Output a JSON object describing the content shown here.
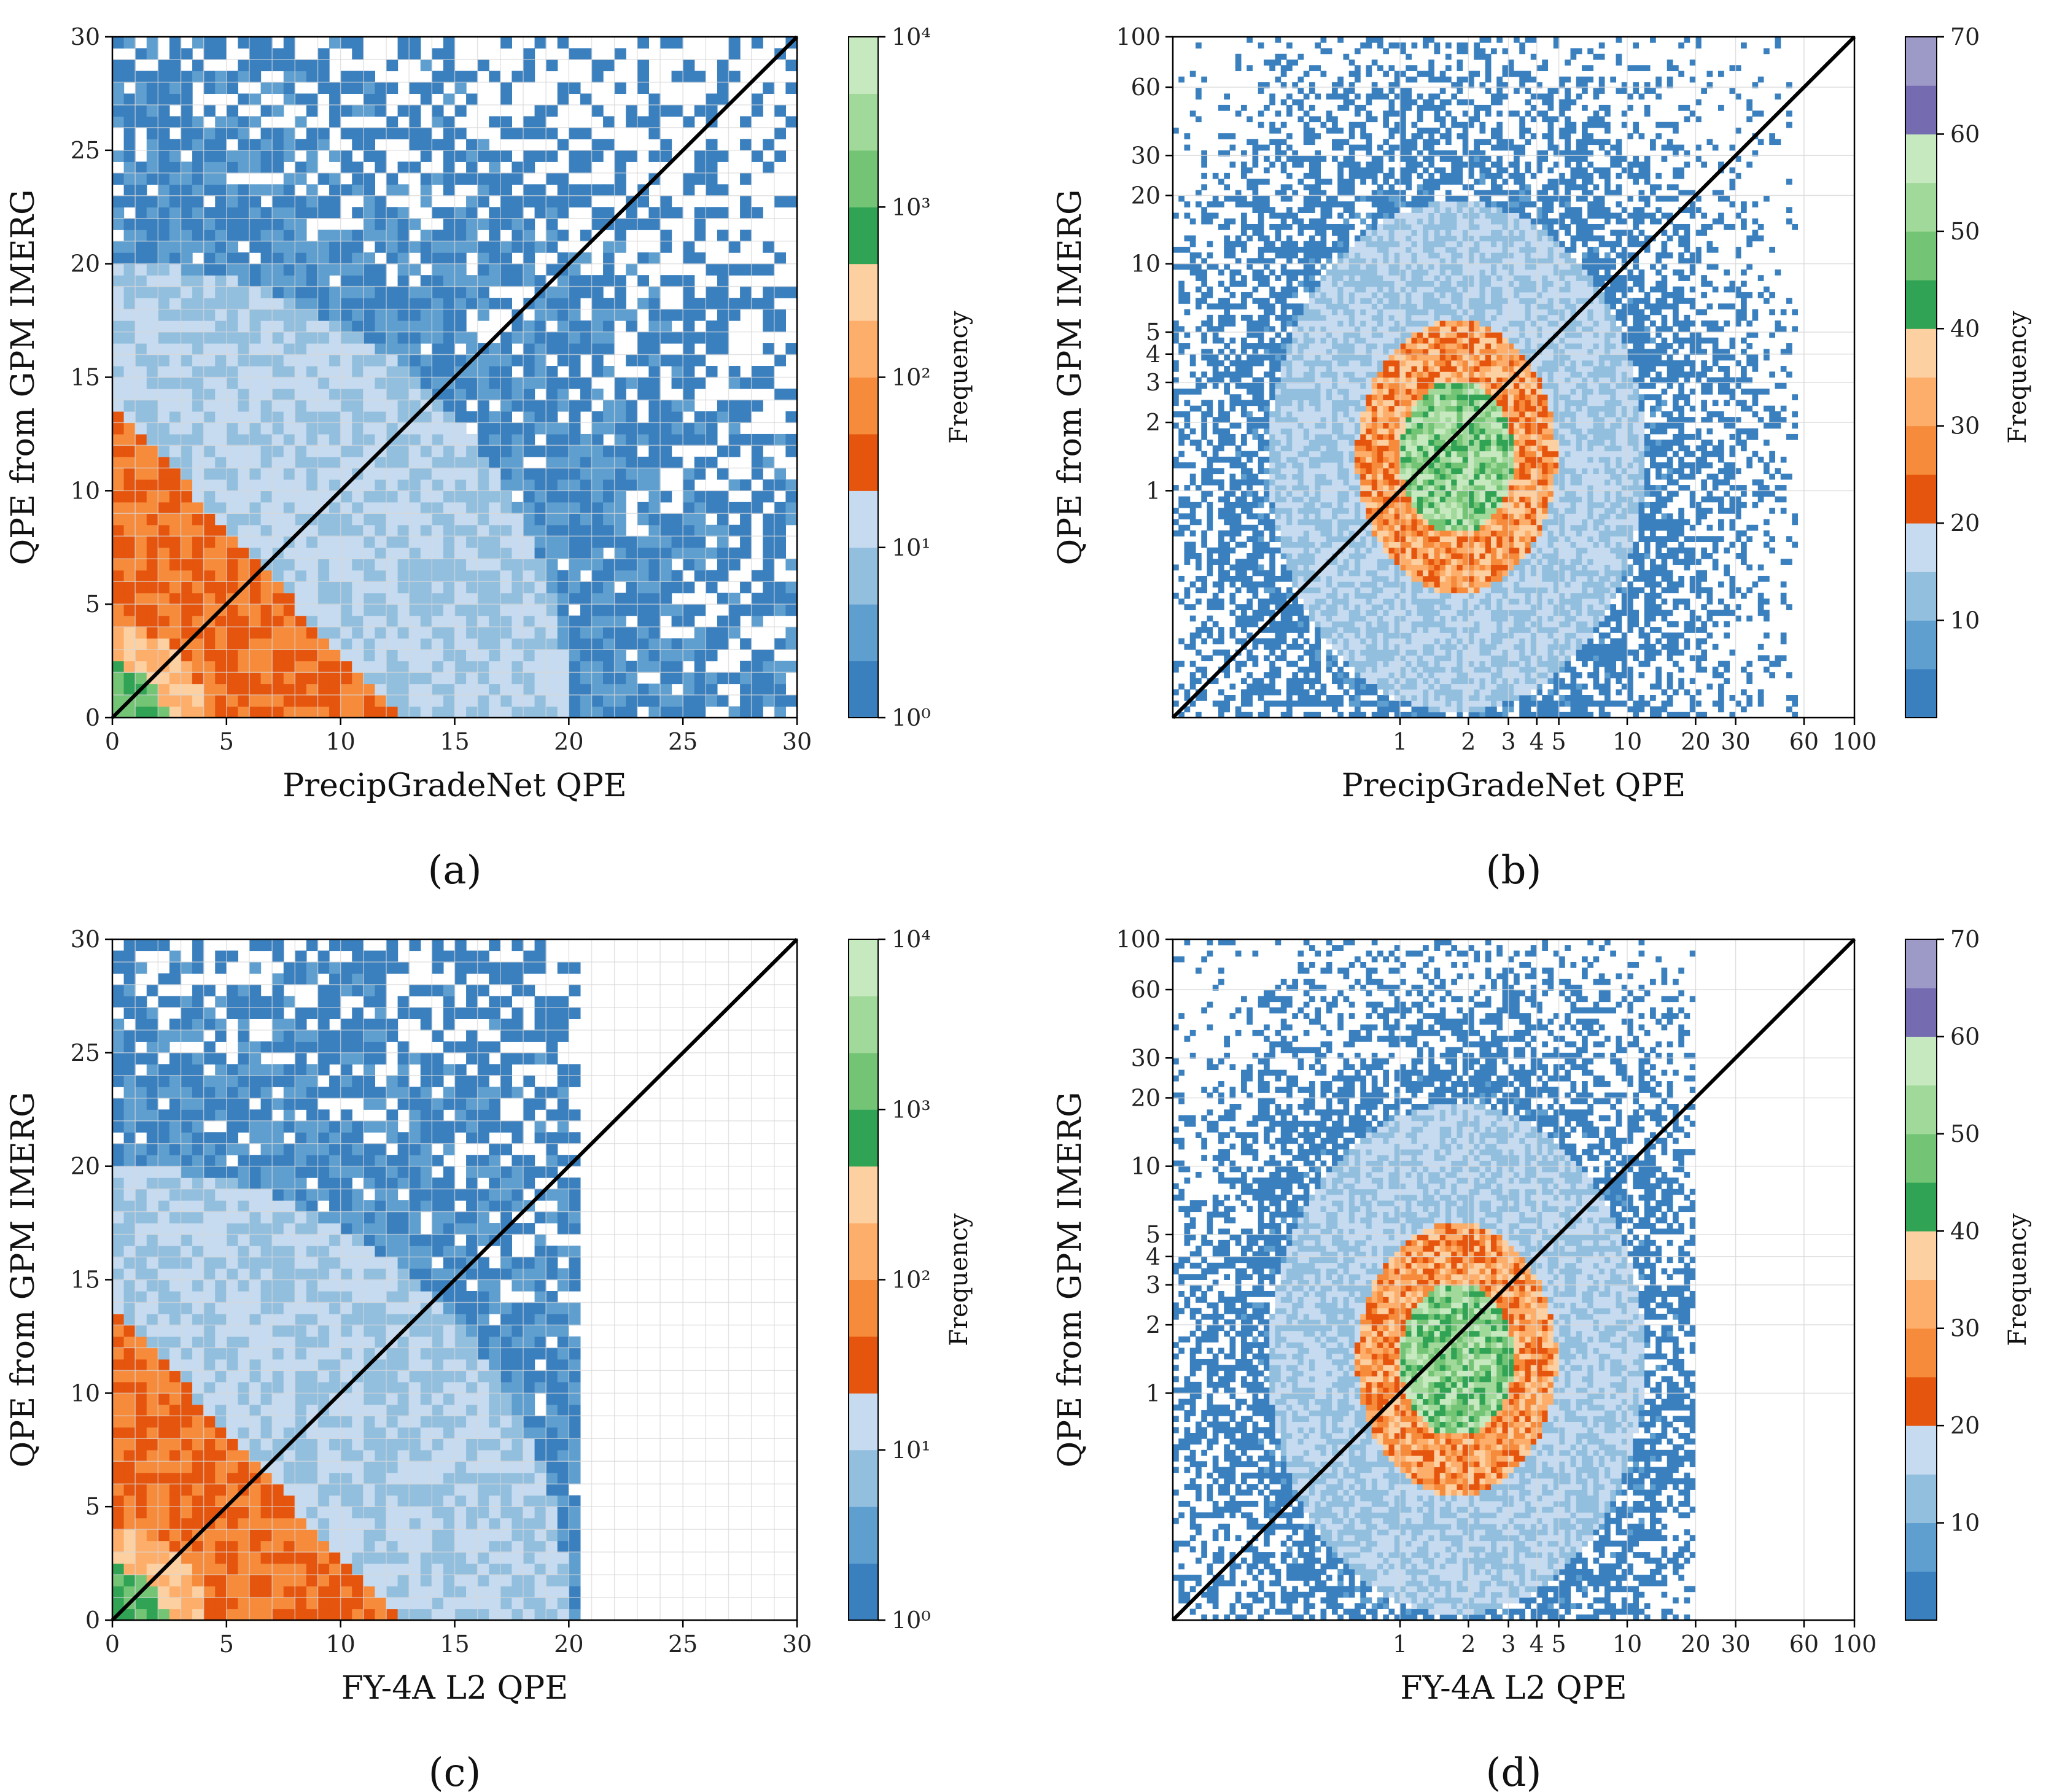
{
  "palette": {
    "colors": [
      "#3a80bf",
      "#5e9fd0",
      "#93bfdf",
      "#c6dbef",
      "#e6550d",
      "#f68b3c",
      "#fdae6b",
      "#fdd0a2",
      "#31a354",
      "#74c476",
      "#a1d99b",
      "#c7e9c0",
      "#756bb1",
      "#9e9ac8"
    ],
    "diagonal": "#000000",
    "grid": "#d8d8d8"
  },
  "chart_data": [
    {
      "id": "a",
      "type": "heatmap",
      "scale": "linear",
      "title": "",
      "panel_label": "(a)",
      "xlabel": "PrecipGradeNet QPE",
      "ylabel": "QPE from GPM IMERG",
      "xlim": [
        0,
        30
      ],
      "ylim": [
        0,
        30
      ],
      "xticks": [
        "0",
        "5",
        "10",
        "15",
        "20",
        "25",
        "30"
      ],
      "yticks": [
        "0",
        "5",
        "10",
        "15",
        "20",
        "25",
        "30"
      ],
      "grid": true,
      "diagonal": "y = x",
      "cap_x": 30,
      "colorbar": {
        "label": "Frequency",
        "scale": "log",
        "range": [
          1,
          10000
        ],
        "ticks": [
          "10⁰",
          "10¹",
          "10²",
          "10³",
          "10⁴"
        ],
        "bins": 12
      }
    },
    {
      "id": "b",
      "type": "heatmap",
      "scale": "log",
      "title": "",
      "panel_label": "(b)",
      "xlabel": "PrecipGradeNet QPE",
      "ylabel": "QPE from GPM IMERG",
      "xlim": [
        0.1,
        100
      ],
      "ylim": [
        0.1,
        100
      ],
      "xticks": [
        "1",
        "2",
        "3",
        "4",
        "5",
        "10",
        "20",
        "30",
        "60",
        "100"
      ],
      "yticks": [
        "1",
        "2",
        "3",
        "4",
        "5",
        "10",
        "20",
        "30",
        "60",
        "100"
      ],
      "grid": true,
      "diagonal": "y = x",
      "cap_x": 55,
      "colorbar": {
        "label": "Frequency",
        "scale": "linear",
        "range": [
          0,
          70
        ],
        "ticks": [
          "10",
          "20",
          "30",
          "40",
          "50",
          "60",
          "70"
        ],
        "bins": 14
      }
    },
    {
      "id": "c",
      "type": "heatmap",
      "scale": "linear",
      "title": "",
      "panel_label": "(c)",
      "xlabel": "FY-4A L2 QPE",
      "ylabel": "QPE from GPM IMERG",
      "xlim": [
        0,
        30
      ],
      "ylim": [
        0,
        30
      ],
      "xticks": [
        "0",
        "5",
        "10",
        "15",
        "20",
        "25",
        "30"
      ],
      "yticks": [
        "0",
        "5",
        "10",
        "15",
        "20",
        "25",
        "30"
      ],
      "grid": true,
      "diagonal": "y = x",
      "cap_x": 20.4,
      "colorbar": {
        "label": "Frequency",
        "scale": "log",
        "range": [
          1,
          10000
        ],
        "ticks": [
          "10⁰",
          "10¹",
          "10²",
          "10³",
          "10⁴"
        ],
        "bins": 12
      }
    },
    {
      "id": "d",
      "type": "heatmap",
      "scale": "log",
      "title": "",
      "panel_label": "(d)",
      "xlabel": "FY-4A L2 QPE",
      "ylabel": "QPE from GPM IMERG",
      "xlim": [
        0.1,
        100
      ],
      "ylim": [
        0.1,
        100
      ],
      "xticks": [
        "1",
        "2",
        "3",
        "4",
        "5",
        "10",
        "20",
        "30",
        "60",
        "100"
      ],
      "yticks": [
        "1",
        "2",
        "3",
        "4",
        "5",
        "10",
        "20",
        "30",
        "60",
        "100"
      ],
      "grid": true,
      "diagonal": "y = x",
      "cap_x": 20,
      "colorbar": {
        "label": "Frequency",
        "scale": "linear",
        "range": [
          0,
          70
        ],
        "ticks": [
          "10",
          "20",
          "30",
          "40",
          "50",
          "60",
          "70"
        ],
        "bins": 14
      }
    }
  ]
}
